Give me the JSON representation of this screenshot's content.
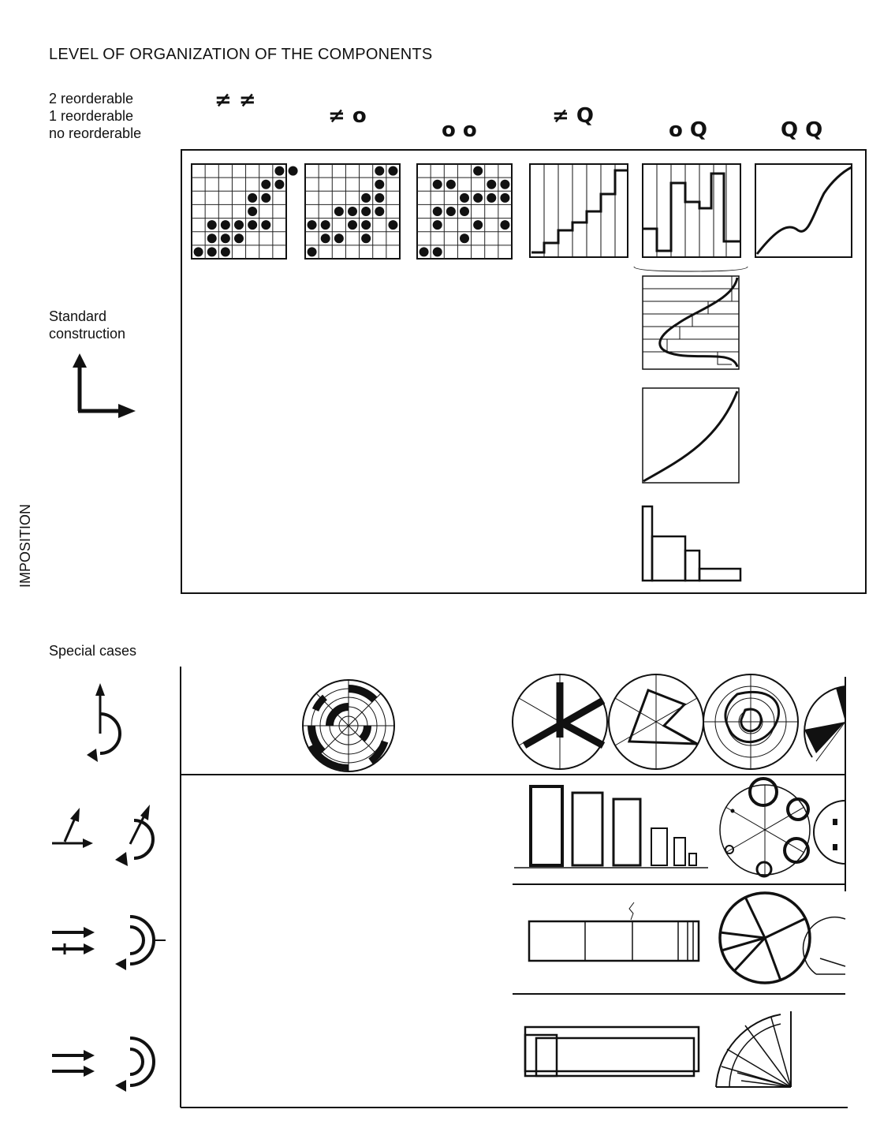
{
  "title": "LEVEL OF ORGANIZATION OF THE COMPONENTS",
  "legend": {
    "line1": "2 reorderable",
    "line2": "1 reorderable",
    "line3": "no reorderable"
  },
  "columns": [
    {
      "symbols": "≠  ≠"
    },
    {
      "symbols": "≠  o"
    },
    {
      "symbols": "o  o"
    },
    {
      "symbols": "≠  Q"
    },
    {
      "symbols": "o  Q"
    },
    {
      "symbols": "Q  Q"
    }
  ],
  "standard_construction": {
    "line1": "Standard",
    "line2": "construction"
  },
  "imposition_label": "IMPOSITION",
  "special_cases_label": "Special cases",
  "colors": {
    "ink": "#111111",
    "grid": "#222222",
    "background": "#ffffff"
  }
}
